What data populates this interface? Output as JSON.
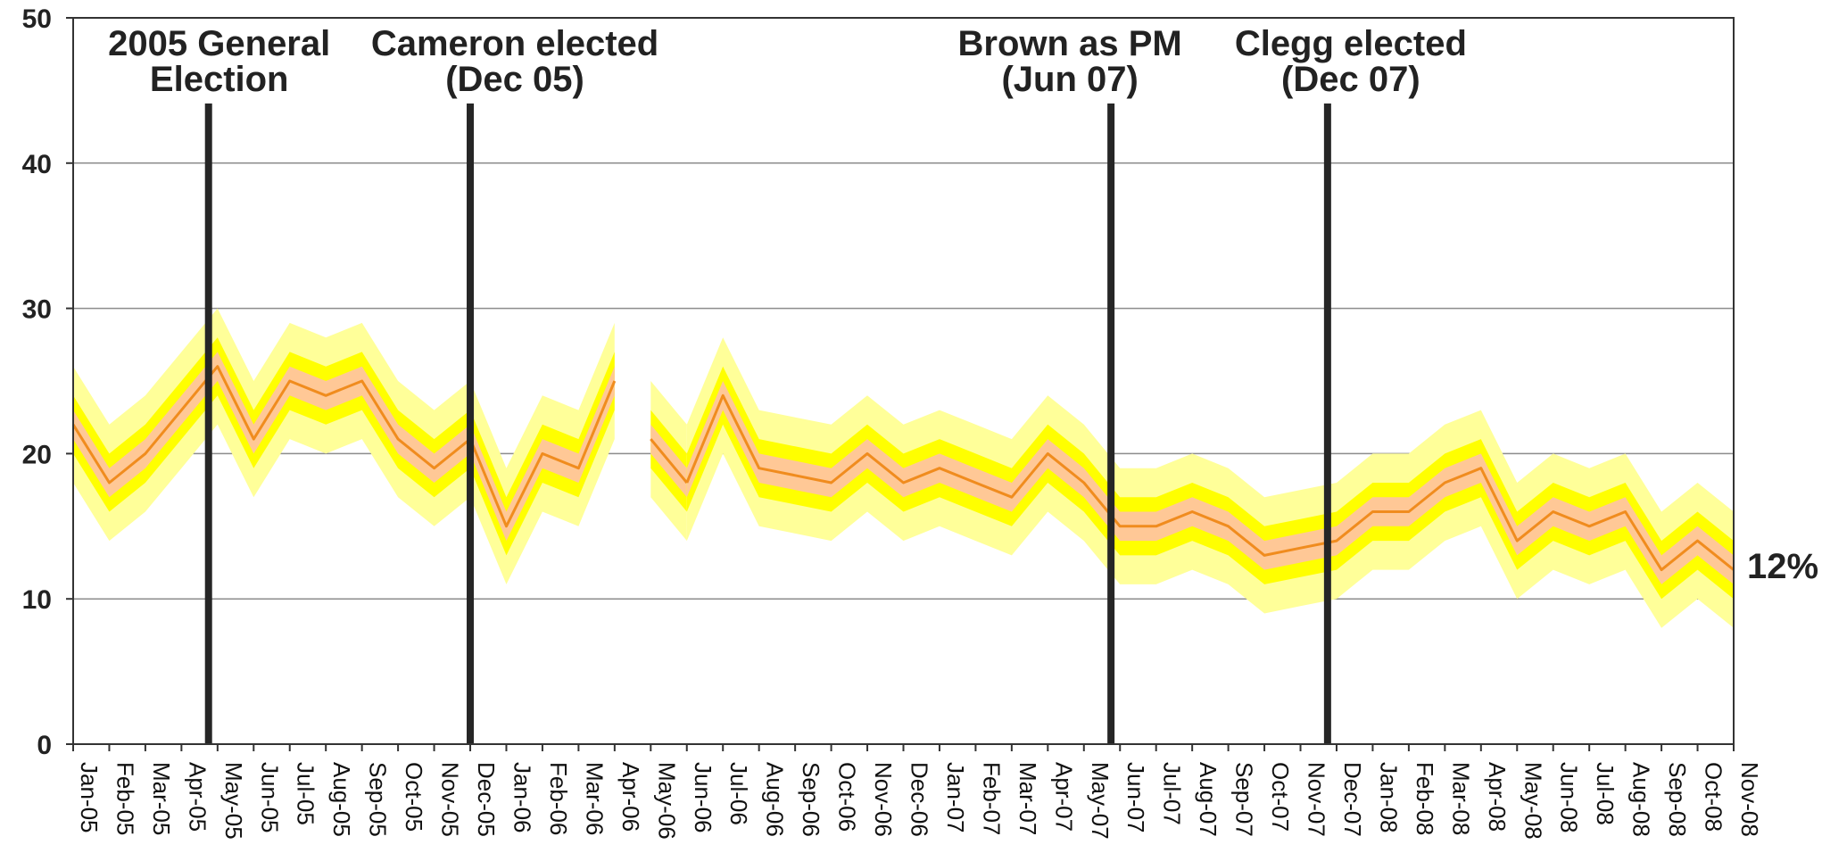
{
  "chart_data": {
    "type": "line",
    "categories": [
      "Jan-05",
      "Feb-05",
      "Mar-05",
      "Apr-05",
      "May-05",
      "Jun-05",
      "Jul-05",
      "Aug-05",
      "Sep-05",
      "Oct-05",
      "Nov-05",
      "Dec-05",
      "Jan-06",
      "Feb-06",
      "Mar-06",
      "Apr-06",
      "May-06",
      "Jun-06",
      "Jul-06",
      "Aug-06",
      "Sep-06",
      "Oct-06",
      "Nov-06",
      "Dec-06",
      "Jan-07",
      "Feb-07",
      "Mar-07",
      "Apr-07",
      "May-07",
      "Jun-07",
      "Jul-07",
      "Aug-07",
      "Sep-07",
      "Oct-07",
      "Nov-07",
      "Dec-07",
      "Jan-08",
      "Feb-08",
      "Mar-08",
      "Apr-08",
      "May-08",
      "Jun-08",
      "Jul-08",
      "Aug-08",
      "Sep-08",
      "Oct-08",
      "Nov-08"
    ],
    "series": [
      {
        "values": [
          22,
          18,
          20,
          23,
          26,
          21,
          25,
          24,
          25,
          21,
          19,
          21,
          15,
          20,
          19,
          25,
          21,
          18,
          24,
          19,
          18.5,
          18,
          20,
          18,
          19,
          18,
          17,
          20,
          18,
          15,
          15,
          16,
          15,
          13,
          13.5,
          14,
          16,
          16,
          18,
          19,
          14,
          16,
          15,
          16,
          12,
          14,
          12
        ],
        "color": "#f08c1e",
        "band_inner": 1,
        "band_mid": 2,
        "band_outer": 4
      }
    ],
    "segments": [
      [
        0,
        15
      ],
      [
        16,
        17
      ],
      [
        17,
        46
      ]
    ],
    "band_colors": {
      "outer": "#ffff99",
      "mid": "#ffff00",
      "inner": "#ffc896"
    },
    "events": [
      {
        "label_lines": [
          "2005 General",
          "Election"
        ],
        "x": 3.75
      },
      {
        "label_lines": [
          "Cameron elected",
          "(Dec 05)"
        ],
        "x": 11
      },
      {
        "label_lines": [
          "Brown as PM",
          "(Jun 07)"
        ],
        "x": 28.75
      },
      {
        "label_lines": [
          "Clegg elected",
          "(Dec 07)"
        ],
        "x": 34.75
      }
    ],
    "end_label": "12%",
    "ylim": [
      0,
      50
    ],
    "yticks": [
      0,
      10,
      20,
      30,
      40,
      50
    ],
    "grid": true,
    "title": "",
    "xlabel": "",
    "ylabel": ""
  }
}
